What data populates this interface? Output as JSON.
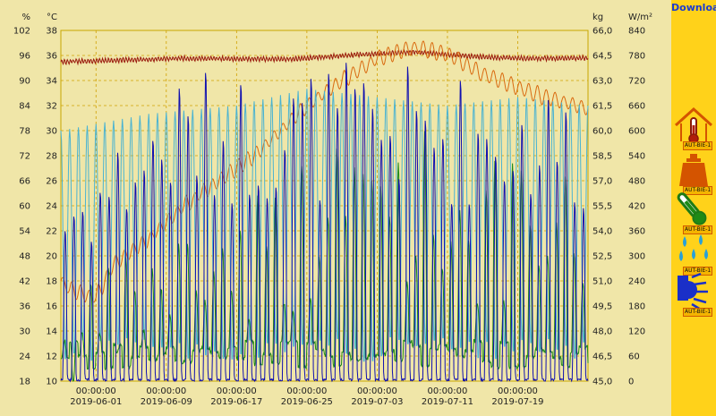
{
  "toolbar": {
    "download_label": "Download"
  },
  "sidebar": {
    "items": [
      {
        "icon": "house-thermometer-icon",
        "label": "AUT-BIE-1"
      },
      {
        "icon": "weight-icon",
        "label": "AUT-BIE-1"
      },
      {
        "icon": "thermometer-icon",
        "label": "AUT-BIE-1"
      },
      {
        "icon": "rain-drops-icon",
        "label": "AUT-BIE-1"
      },
      {
        "icon": "sun-icon",
        "label": "AUT-BIE-1"
      }
    ]
  },
  "chart_data": {
    "type": "line",
    "x_range": [
      "2019-05-28",
      "2019-07-27"
    ],
    "x_ticks": [
      {
        "time": "00:00:00",
        "date": "2019-06-01"
      },
      {
        "time": "00:00:00",
        "date": "2019-06-09"
      },
      {
        "time": "00:00:00",
        "date": "2019-06-17"
      },
      {
        "time": "00:00:00",
        "date": "2019-06-25"
      },
      {
        "time": "00:00:00",
        "date": "2019-07-03"
      },
      {
        "time": "00:00:00",
        "date": "2019-07-11"
      },
      {
        "time": "00:00:00",
        "date": "2019-07-19"
      }
    ],
    "axes": {
      "humidity": {
        "unit": "%",
        "range": [
          18,
          102
        ],
        "ticks": [
          102,
          96,
          90,
          84,
          78,
          72,
          66,
          60,
          54,
          48,
          42,
          36,
          30,
          24,
          18
        ]
      },
      "temperature": {
        "unit": "°C",
        "range": [
          10,
          38
        ],
        "ticks": [
          38,
          36,
          34,
          32,
          30,
          28,
          26,
          24,
          22,
          20,
          18,
          16,
          14,
          12,
          10
        ]
      },
      "weight": {
        "unit": "kg",
        "range": [
          45.0,
          66.0
        ],
        "ticks": [
          "66,0",
          "64,5",
          "63,0",
          "61,5",
          "60,0",
          "58,5",
          "57,0",
          "55,5",
          "54,0",
          "52,5",
          "51,0",
          "49,5",
          "48,0",
          "46,5",
          "45,0"
        ]
      },
      "radiation": {
        "unit": "W/m²",
        "range": [
          0,
          840
        ],
        "ticks": [
          840,
          780,
          720,
          660,
          600,
          540,
          480,
          420,
          360,
          300,
          240,
          180,
          120,
          60,
          0
        ]
      }
    },
    "grid": true,
    "series": [
      {
        "axis": "humidity",
        "color": "#9a1a0e",
        "keyframes": [
          [
            -4,
            94.5
          ],
          [
            10,
            95.3
          ],
          [
            22,
            95.1
          ],
          [
            30,
            96.2
          ],
          [
            36,
            96.8
          ],
          [
            45,
            95.5
          ],
          [
            50,
            95.3
          ],
          [
            56,
            95.4
          ]
        ]
      },
      {
        "axis": "weight",
        "color": "#d96a10",
        "keyframes": [
          [
            -4,
            51.0
          ],
          [
            -3,
            50.5
          ],
          [
            0,
            50.0
          ],
          [
            2,
            52.0
          ],
          [
            6,
            53.5
          ],
          [
            10,
            55.5
          ],
          [
            18,
            58.5
          ],
          [
            24,
            61.5
          ],
          [
            28,
            63.0
          ],
          [
            32,
            64.3
          ],
          [
            36,
            65.0
          ],
          [
            40,
            64.6
          ],
          [
            44,
            63.4
          ],
          [
            50,
            62.2
          ],
          [
            56,
            61.3
          ]
        ]
      },
      {
        "axis": "humidity",
        "color": "#4ab3d2",
        "keyframes": [
          [
            -4,
            78
          ],
          [
            6,
            82
          ],
          [
            16,
            84
          ],
          [
            24,
            88
          ],
          [
            32,
            86
          ],
          [
            40,
            84
          ],
          [
            48,
            86
          ],
          [
            56,
            84
          ]
        ]
      },
      {
        "axis": "temperature",
        "color": "#1e8a16",
        "keyframes": [
          [
            -4,
            16
          ],
          [
            6,
            22
          ],
          [
            16,
            26
          ],
          [
            26,
            29
          ],
          [
            32,
            33
          ],
          [
            38,
            31
          ],
          [
            46,
            28
          ],
          [
            56,
            27
          ]
        ]
      },
      {
        "axis": "radiation",
        "color": "#1010b0",
        "keyframes": [
          [
            -4,
            480
          ],
          [
            10,
            760
          ],
          [
            20,
            760
          ],
          [
            30,
            780
          ],
          [
            40,
            760
          ],
          [
            50,
            740
          ],
          [
            56,
            720
          ]
        ]
      }
    ]
  }
}
